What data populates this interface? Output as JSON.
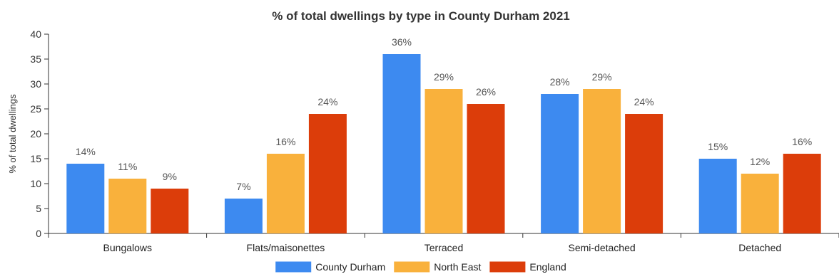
{
  "chart_data": {
    "type": "bar",
    "title": "% of total dwellings by type in County Durham 2021",
    "xlabel": "",
    "ylabel": "% of total dwellings",
    "ylim": [
      0,
      40
    ],
    "yticks": [
      0,
      5,
      10,
      15,
      20,
      25,
      30,
      35,
      40
    ],
    "categories": [
      "Bungalows",
      "Flats/maisonettes",
      "Terraced",
      "Semi-detached",
      "Detached"
    ],
    "series": [
      {
        "name": "County Durham",
        "color": "#3d8af0",
        "values": [
          14,
          7,
          36,
          28,
          15
        ],
        "labels": [
          "14%",
          "7%",
          "36%",
          "28%",
          "15%"
        ]
      },
      {
        "name": "North East",
        "color": "#f9b13c",
        "values": [
          11,
          16,
          29,
          29,
          12
        ],
        "labels": [
          "11%",
          "16%",
          "29%",
          "29%",
          "12%"
        ]
      },
      {
        "name": "England",
        "color": "#dc3d0a",
        "values": [
          9,
          24,
          26,
          24,
          16
        ],
        "labels": [
          "9%",
          "24%",
          "26%",
          "24%",
          "16%"
        ]
      }
    ],
    "legend_position": "bottom-center",
    "grid": false
  }
}
